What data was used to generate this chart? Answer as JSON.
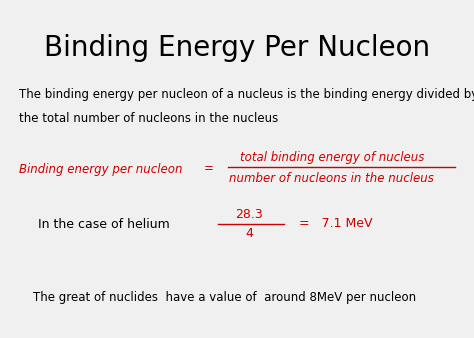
{
  "title": "Binding Energy Per Nucleon",
  "title_fontsize": 20,
  "title_color": "#000000",
  "bg_color": "#f0f0f0",
  "paragraph1_line1": "The binding energy per nucleon of a nucleus is the binding energy divided by",
  "paragraph1_line2": "the total number of nucleons in the nucleus",
  "paragraph1_color": "#000000",
  "paragraph1_fontsize": 8.5,
  "equation_label": "Binding energy per nucleon",
  "equation_equals": "=",
  "fraction_numerator": "total binding energy of nucleus",
  "fraction_denominator": "number of nucleons in the nucleus",
  "equation_color": "#cc0000",
  "equation_fontsize": 8.5,
  "helium_label": "In the case of helium",
  "helium_label_color": "#000000",
  "helium_numerator": "28.3",
  "helium_denominator": "4",
  "helium_result": "=   7.1 MeV",
  "helium_color": "#cc0000",
  "helium_fontsize": 9,
  "footer": "The great of nuclides  have a value of  around 8MeV per nucleon",
  "footer_color": "#000000",
  "footer_fontsize": 8.5
}
